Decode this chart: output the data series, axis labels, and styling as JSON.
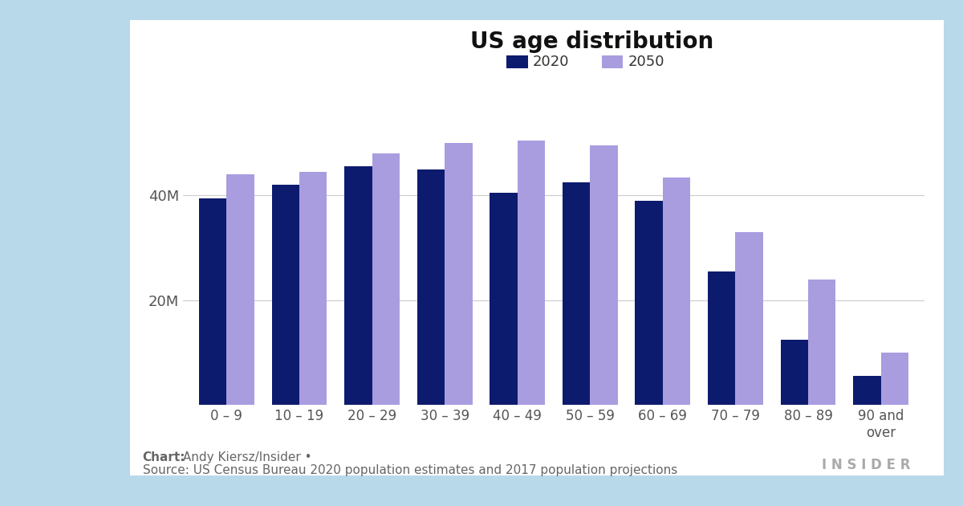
{
  "title": "US age distribution",
  "categories": [
    "0 – 9",
    "10 – 19",
    "20 – 29",
    "30 – 39",
    "40 – 49",
    "50 – 59",
    "60 – 69",
    "70 – 79",
    "80 – 89",
    "90 and\nover"
  ],
  "values_2020": [
    39.5,
    42.0,
    45.5,
    45.0,
    40.5,
    42.5,
    39.0,
    25.5,
    12.5,
    5.5
  ],
  "values_2050": [
    44.0,
    44.5,
    48.0,
    50.0,
    50.5,
    49.5,
    43.5,
    33.0,
    24.0,
    10.0
  ],
  "color_2020": "#0d1b6e",
  "color_2050": "#a99de0",
  "legend_2020": "2020",
  "legend_2050": "2050",
  "yticks": [
    0,
    20,
    40
  ],
  "ytick_labels": [
    "",
    "20M",
    "40M"
  ],
  "ylim": [
    0,
    58
  ],
  "background_color": "#ffffff",
  "outer_background": "#b8d9ea",
  "chart_credit_bold": "Chart:",
  "chart_credit_normal": " Andy Kiersz/Insider •",
  "source_text": "Source: US Census Bureau 2020 population estimates and 2017 population projections",
  "insider_text": "INSIDER",
  "title_fontsize": 20,
  "legend_fontsize": 13,
  "tick_fontsize": 12,
  "credit_fontsize": 11
}
